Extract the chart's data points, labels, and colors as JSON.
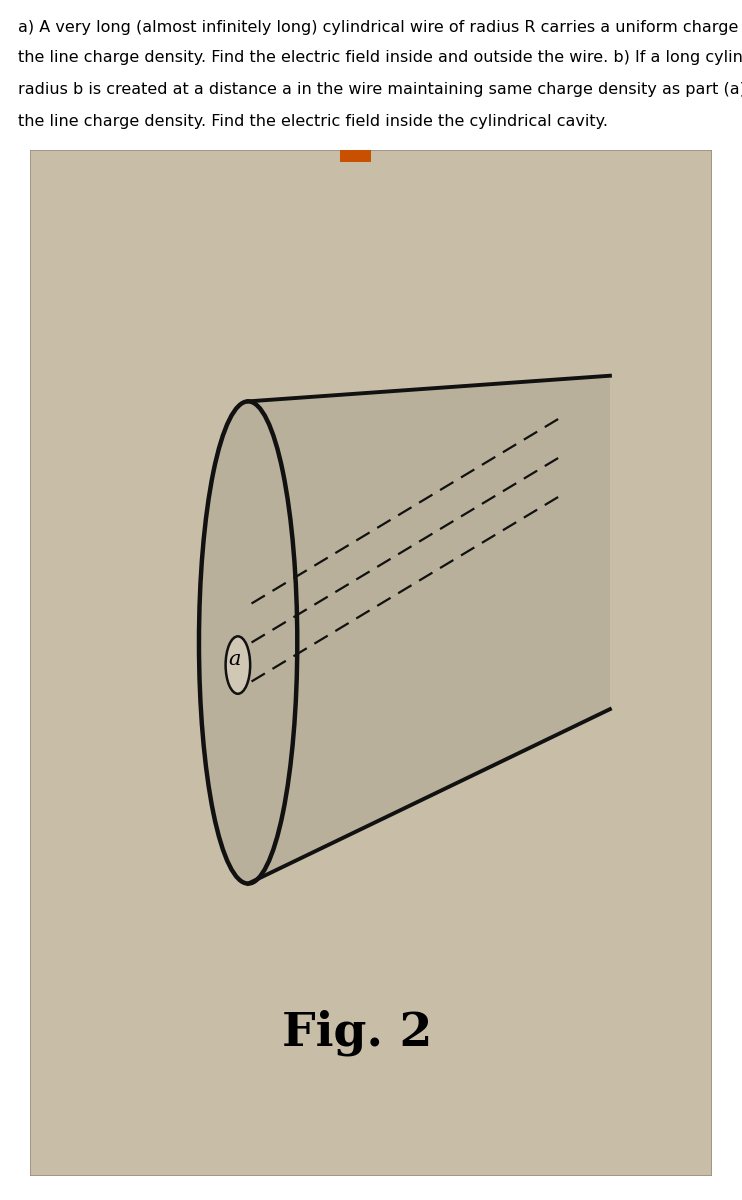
{
  "bg_color": "#c8bea8",
  "page_bg": "#ffffff",
  "text_color": "#000000",
  "header_text": "a) A very long (almost infinitely long) cylindrical wire of radius R carries a uniform charge density Po .  Find\nthe line charge density. Find the electric field inside and outside the wire. b) If a long cylindrical cavity of\nradius b is created at a distance a in the wire maintaining same charge density as part (a) (see Fig. 2).  Find\nthe line charge density. Find the electric field inside the cylindrical cavity.",
  "fig_label": "Fig. 2",
  "fig_label_fontsize": 34,
  "header_fontsize": 11.5,
  "box_bg": "#c8bea8",
  "cylinder_fill": "#b8b09a",
  "cylinder_outline": "#111111",
  "dashed_color": "#111111",
  "label_o": "a",
  "orange_tab_color": "#c85000"
}
